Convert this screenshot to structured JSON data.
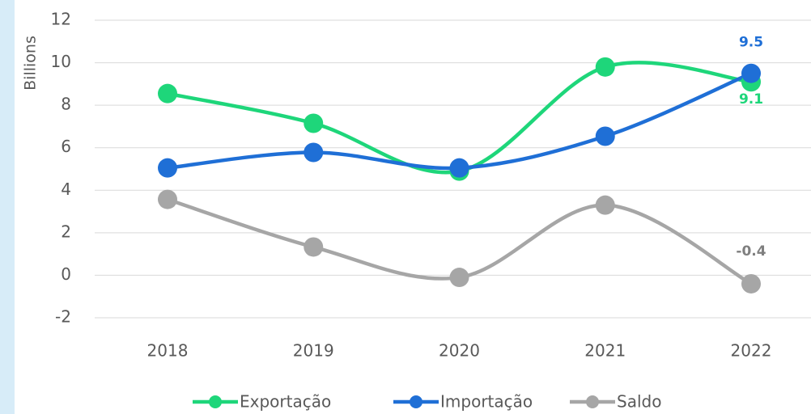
{
  "chart_data": {
    "type": "line",
    "y_label": "Billions",
    "categories": [
      "2018",
      "2019",
      "2020",
      "2021",
      "2022"
    ],
    "series": [
      {
        "name": "Exportação",
        "color": "#1ed67a",
        "values": [
          8.55,
          7.15,
          4.9,
          9.8,
          9.1
        ]
      },
      {
        "name": "Importação",
        "color": "#1f6fd6",
        "values": [
          5.05,
          5.78,
          5.05,
          6.54,
          9.5
        ]
      },
      {
        "name": "Saldo",
        "color": "#a6a6a6",
        "values": [
          3.57,
          1.33,
          -0.1,
          3.3,
          -0.4
        ]
      }
    ],
    "ylim": [
      -2,
      12
    ],
    "yticks": [
      -2,
      0,
      2,
      4,
      6,
      8,
      10,
      12
    ],
    "grid": true,
    "smooth": true,
    "legend": "bottom"
  }
}
